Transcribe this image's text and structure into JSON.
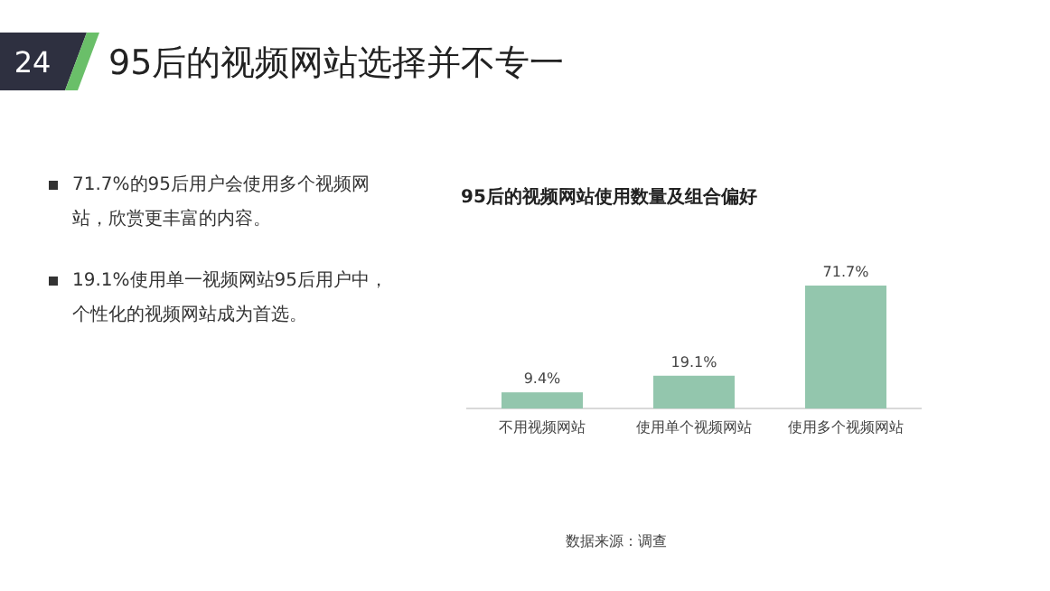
{
  "chart_data": {
    "type": "bar",
    "title": "95后的视频网站使用数量及组合偏好",
    "categories": [
      "不用视频网站",
      "使用单个视频网站",
      "使用多个视频网站"
    ],
    "values": [
      9.4,
      19.1,
      71.7
    ],
    "value_labels": [
      "9.4%",
      "19.1%",
      "71.7%"
    ],
    "color": "#93c6ad",
    "annotations": [
      "24",
      "95后的视频网站选择并不专一",
      "71.7%的95后用户会使用多个视频网站，欣赏更丰富的内容。",
      "19.1%使用单一视频网站95后用户中，个性化的视频网站成为首选。",
      "数据来源：调查"
    ]
  }
}
